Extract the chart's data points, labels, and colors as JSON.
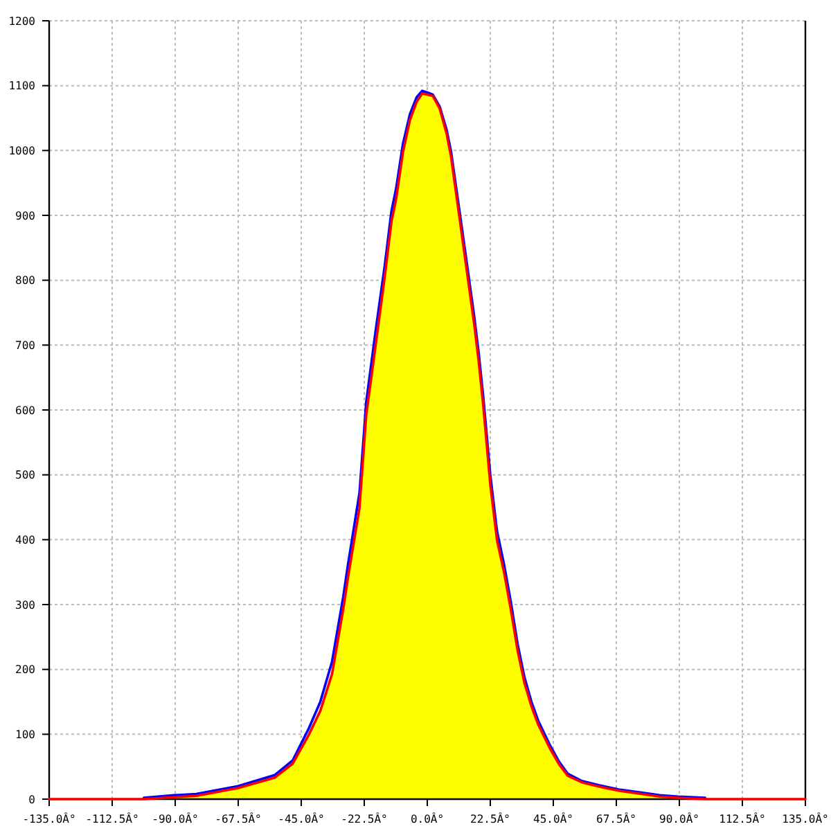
{
  "chart_data": {
    "type": "area",
    "series": [
      {
        "color": "#ffff00",
        "x": [
          -101.2,
          -90.5,
          -82.5,
          -67.6,
          -54.5,
          -48.0,
          -42.2,
          -38.2,
          -34.0,
          -30.0,
          -28.3,
          -24.2,
          -21.8,
          -18.5,
          -15.2,
          -12.8,
          -11.1,
          -8.7,
          -6.2,
          -3.8,
          -1.8,
          0.3,
          2.0,
          4.4,
          6.9,
          8.5,
          11.0,
          12.6,
          14.2,
          16.7,
          18.3,
          20.0,
          22.5,
          24.9,
          27.4,
          29.8,
          32.3,
          34.7,
          37.2,
          39.6,
          43.7,
          47.0,
          50.2,
          55.2,
          61.7,
          68.3,
          76.5,
          83.0,
          89.5,
          99.2
        ],
        "values": [
          0,
          3,
          5,
          17,
          33,
          55,
          100,
          136,
          193,
          293,
          342,
          449,
          592,
          698,
          805,
          890,
          926,
          997,
          1047,
          1075,
          1088,
          1086,
          1084,
          1065,
          1026,
          990,
          912,
          862,
          812,
          734,
          677,
          606,
          485,
          399,
          350,
          293,
          228,
          179,
          143,
          115,
          79,
          54,
          36,
          26,
          19,
          13,
          8,
          4,
          2,
          0
        ]
      },
      {
        "type": "line",
        "color": "#0000ff",
        "x": [
          -101.2,
          -90.5,
          -82.5,
          -67.6,
          -54.5,
          -48.0,
          -42.2,
          -38.2,
          -34.0,
          -30.0,
          -28.3,
          -24.2,
          -21.8,
          -18.5,
          -15.2,
          -12.8,
          -11.1,
          -8.7,
          -6.2,
          -3.8,
          -1.8,
          0.3,
          2.0,
          4.4,
          6.9,
          8.5,
          11.0,
          12.6,
          14.2,
          16.7,
          18.3,
          20.0,
          22.5,
          24.9,
          27.4,
          29.8,
          32.3,
          34.7,
          37.2,
          39.6,
          43.7,
          47.0,
          50.2,
          55.2,
          61.7,
          68.3,
          76.5,
          83.0,
          89.5,
          99.2
        ],
        "values": [
          2,
          6,
          8,
          20,
          37,
          60,
          110,
          150,
          212,
          312,
          362,
          472,
          612,
          720,
          822,
          906,
          942,
          1010,
          1056,
          1082,
          1092,
          1089,
          1086,
          1068,
          1032,
          998,
          922,
          873,
          824,
          746,
          690,
          620,
          500,
          413,
          362,
          305,
          238,
          188,
          150,
          121,
          84,
          58,
          39,
          28,
          21,
          15,
          10,
          6,
          4,
          2
        ]
      },
      {
        "type": "line",
        "color": "#ff0000",
        "x": [
          -135,
          -101.2,
          -90.5,
          -82.5,
          -67.6,
          -54.5,
          -48.0,
          -42.2,
          -38.2,
          -34.0,
          -30.0,
          -28.3,
          -24.2,
          -21.8,
          -18.5,
          -15.2,
          -12.8,
          -11.1,
          -8.7,
          -6.2,
          -3.8,
          -1.8,
          0.3,
          2.0,
          4.4,
          6.9,
          8.5,
          11.0,
          12.6,
          14.2,
          16.7,
          18.3,
          20.0,
          22.5,
          24.9,
          27.4,
          29.8,
          32.3,
          34.7,
          37.2,
          39.6,
          43.7,
          47.0,
          50.2,
          55.2,
          61.7,
          68.3,
          76.5,
          83.0,
          89.5,
          99.2,
          135
        ],
        "values": [
          0,
          0,
          3,
          5,
          17,
          33,
          55,
          100,
          136,
          193,
          293,
          342,
          449,
          592,
          698,
          805,
          890,
          926,
          997,
          1047,
          1075,
          1088,
          1086,
          1084,
          1065,
          1026,
          990,
          912,
          862,
          812,
          734,
          677,
          606,
          485,
          399,
          350,
          293,
          228,
          179,
          143,
          115,
          79,
          54,
          36,
          26,
          19,
          13,
          8,
          4,
          2,
          0,
          0
        ]
      }
    ],
    "xlim": [
      -135,
      135
    ],
    "xticks": [
      {
        "value": -135,
        "label": "-135.0Â°"
      },
      {
        "value": -112.5,
        "label": "-112.5Â°"
      },
      {
        "value": -90,
        "label": "-90.0Â°"
      },
      {
        "value": -67.5,
        "label": "-67.5Â°"
      },
      {
        "value": -45,
        "label": "-45.0Â°"
      },
      {
        "value": -22.5,
        "label": "-22.5Â°"
      },
      {
        "value": 0,
        "label": "0.0Â°"
      },
      {
        "value": 22.5,
        "label": "22.5Â°"
      },
      {
        "value": 45,
        "label": "45.0Â°"
      },
      {
        "value": 67.5,
        "label": "67.5Â°"
      },
      {
        "value": 90,
        "label": "90.0Â°"
      },
      {
        "value": 112.5,
        "label": "112.5Â°"
      },
      {
        "value": 135,
        "label": "135.0Â°"
      }
    ],
    "ylim": [
      0,
      1200
    ],
    "yticks": [
      0,
      100,
      200,
      300,
      400,
      500,
      600,
      700,
      800,
      900,
      1000,
      1100,
      1200
    ],
    "grid": true,
    "line_style": "solid"
  }
}
